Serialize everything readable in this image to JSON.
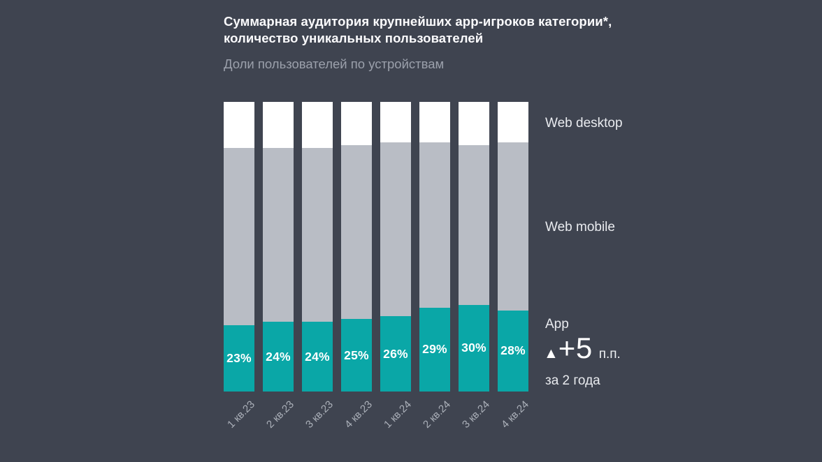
{
  "header": {
    "title_lines": [
      "Суммарная аудитория крупнейших app-игроков категории*,",
      "количество уникальных пользователей"
    ],
    "subtitle": "Доли пользователей по устройствам"
  },
  "legend": {
    "web_desktop": "Web desktop",
    "web_mobile": "Web mobile",
    "app": "App"
  },
  "annotation": {
    "arrow": "▲",
    "delta": "+5",
    "units": "п.п.",
    "period": "за 2 года"
  },
  "colors": {
    "background": "#3f4450",
    "app": "#0aa7a7",
    "web_mobile": "#b9bdc5",
    "web_desktop": "#ffffff",
    "title_text": "#fbfbfd",
    "muted_text": "#9ba0ab",
    "axis_text": "#abb0b9"
  },
  "chart_data": {
    "type": "bar",
    "stacked": true,
    "orientation": "vertical",
    "title": "Суммарная аудитория крупнейших app-игроков категории*, количество уникальных пользователей",
    "subtitle": "Доли пользователей по устройствам",
    "categories": [
      "1 кв.23",
      "2 кв.23",
      "3 кв.23",
      "4 кв.23",
      "1 кв.24",
      "2 кв.24",
      "3 кв.24",
      "4 кв.24"
    ],
    "units": "%",
    "ylim": [
      0,
      100
    ],
    "grid": false,
    "legend_position": "right",
    "series": [
      {
        "name": "App",
        "color": "#0aa7a7",
        "values": [
          23,
          24,
          24,
          25,
          26,
          29,
          30,
          28
        ],
        "labels": [
          "23%",
          "24%",
          "24%",
          "25%",
          "26%",
          "29%",
          "30%",
          "28%"
        ],
        "values_labeled_on_chart": true
      },
      {
        "name": "Web mobile",
        "color": "#b9bdc5",
        "values": [
          61,
          60,
          60,
          60,
          60,
          57,
          55,
          58
        ],
        "estimated_from_pixels": true
      },
      {
        "name": "Web desktop",
        "color": "#ffffff",
        "values": [
          16,
          16,
          16,
          15,
          14,
          14,
          15,
          14
        ],
        "estimated_from_pixels": true
      }
    ],
    "annotation": {
      "series": "App",
      "text": "▲+5 п.п. за 2 года",
      "direction": "up"
    }
  }
}
